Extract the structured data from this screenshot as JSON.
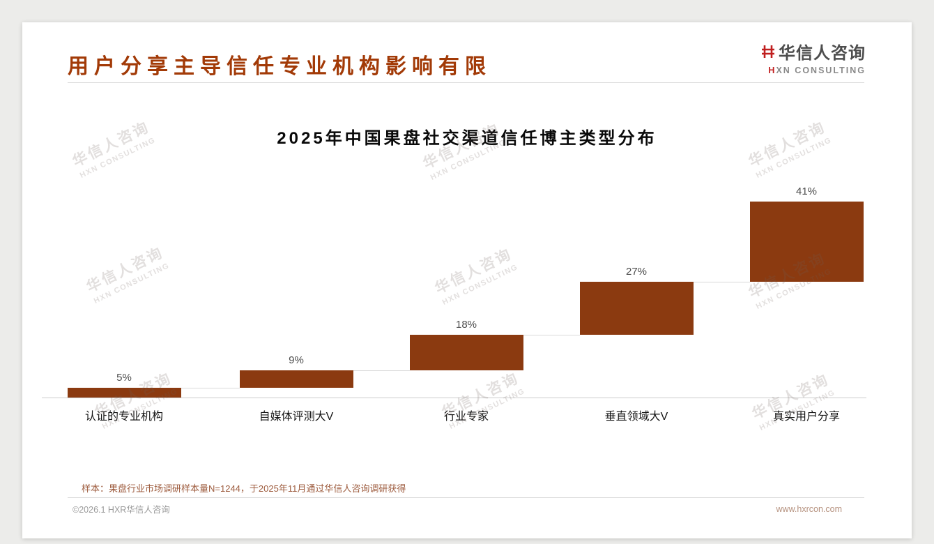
{
  "header": {
    "title": "用户分享主导信任专业机构影响有限",
    "logo_cn": "华信人咨询",
    "logo_en_h": "H",
    "logo_en_rest": "XN CONSULTING"
  },
  "chart_data": {
    "type": "bar",
    "subtype": "waterfall",
    "title": "2025年中国果盘社交渠道信任博主类型分布",
    "categories": [
      "认证的专业机构",
      "自媒体评测大V",
      "行业专家",
      "垂直领域大V",
      "真实用户分享"
    ],
    "values": [
      5,
      9,
      18,
      27,
      41
    ],
    "value_labels": [
      "5%",
      "9%",
      "18%",
      "27%",
      "41%"
    ],
    "unit": "%",
    "ylim": [
      0,
      100
    ],
    "grid": false,
    "legend": "none",
    "bar_color": "#8b3a10",
    "value_label_color": "#4d4d4d",
    "baseline_color": "#cccccc"
  },
  "watermark": {
    "cn": "华信人咨询",
    "en": "HXN CONSULTING"
  },
  "footnote": "样本：果盘行业市场调研样本量N=1244，于2025年11月通过华信人咨询调研获得",
  "footer": {
    "left": "©2026.1 HXR华信人咨询",
    "right": "www.hxrcon.com"
  }
}
